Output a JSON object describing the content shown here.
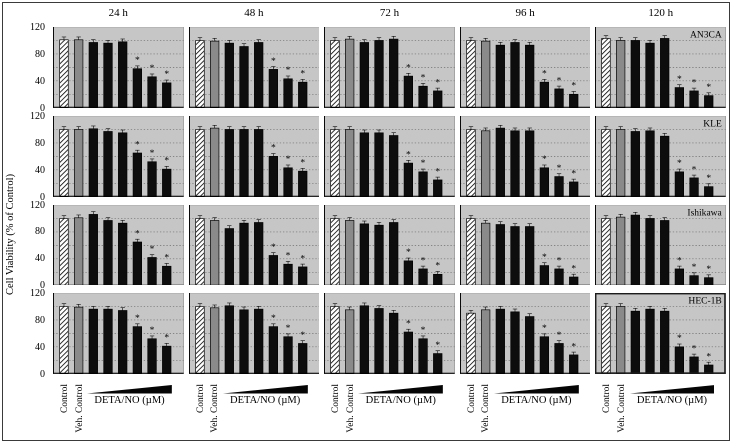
{
  "chart_data": {
    "type": "bar",
    "layout": "grid-of-panels",
    "title": "",
    "ylabel": "Cell Viability (% of Control)",
    "xlabel": "DETA/NO (µM)",
    "x_category_labels": [
      "Control",
      "Veh. Control"
    ],
    "dose_axis_note": "black wedge = increasing DETA/NO concentration",
    "ylim": [
      0,
      120
    ],
    "yticks": [
      120,
      80,
      40,
      0
    ],
    "gridlines": [
      20,
      40,
      60,
      80,
      100
    ],
    "grid": true,
    "columns": [
      "24 h",
      "48 h",
      "72 h",
      "96 h",
      "120 h"
    ],
    "rows": [
      "AN3CA",
      "KLE",
      "Ishikawa",
      "HEC-1B"
    ],
    "bars_per_panel": 8,
    "bar_types": [
      "hatched",
      "gray",
      "black",
      "black",
      "black",
      "black",
      "black",
      "black"
    ],
    "significance_marker": "*",
    "significant_indices": [
      5,
      6,
      7
    ],
    "error_bar_size": 3,
    "panels": [
      {
        "cell_line": "AN3CA",
        "data": {
          "24 h": [
            101,
            101,
            97,
            96,
            98,
            58,
            46,
            37
          ],
          "48 h": [
            100,
            99,
            96,
            91,
            97,
            57,
            43,
            38
          ],
          "72 h": [
            100,
            102,
            97,
            100,
            102,
            47,
            32,
            25
          ],
          "96 h": [
            100,
            99,
            93,
            97,
            93,
            38,
            28,
            20
          ],
          "120 h": [
            103,
            100,
            100,
            96,
            103,
            30,
            25,
            18
          ]
        }
      },
      {
        "cell_line": "KLE",
        "data": {
          "24 h": [
            100,
            100,
            101,
            97,
            95,
            65,
            52,
            41
          ],
          "48 h": [
            100,
            102,
            100,
            100,
            100,
            60,
            43,
            38
          ],
          "72 h": [
            100,
            100,
            95,
            95,
            91,
            50,
            37,
            25
          ],
          "96 h": [
            100,
            98,
            102,
            98,
            98,
            43,
            30,
            22
          ],
          "120 h": [
            100,
            100,
            97,
            98,
            90,
            37,
            28,
            15
          ]
        }
      },
      {
        "cell_line": "Ishikawa",
        "data": {
          "24 h": [
            100,
            101,
            106,
            97,
            93,
            65,
            42,
            29
          ],
          "48 h": [
            100,
            97,
            85,
            93,
            94,
            45,
            32,
            28
          ],
          "72 h": [
            100,
            97,
            92,
            90,
            94,
            37,
            25,
            17
          ],
          "96 h": [
            100,
            93,
            91,
            88,
            88,
            30,
            25,
            13
          ],
          "120 h": [
            100,
            102,
            105,
            100,
            97,
            25,
            15,
            12
          ]
        }
      },
      {
        "cell_line": "HEC-1B",
        "data": {
          "24 h": [
            100,
            99,
            96,
            96,
            94,
            70,
            52,
            41
          ],
          "48 h": [
            100,
            98,
            101,
            95,
            96,
            70,
            55,
            45
          ],
          "72 h": [
            100,
            95,
            101,
            97,
            90,
            62,
            52,
            30
          ],
          "96 h": [
            90,
            95,
            96,
            92,
            85,
            55,
            45,
            28
          ],
          "120 h": [
            100,
            100,
            93,
            96,
            93,
            40,
            25,
            13
          ]
        }
      }
    ],
    "highlighted_panel": {
      "cell_line": "HEC-1B",
      "time": "120 h"
    },
    "colors": {
      "panel_bg": "#c6c6c6",
      "bar_black": "#0d0d0d",
      "bar_gray": "#8a8a8a",
      "hatch_fg": "#000000",
      "hatch_bg": "#ffffff",
      "grid_color": "#6e6e6e",
      "axis_color": "#000000",
      "frame_color": "#3a3a3a"
    }
  }
}
